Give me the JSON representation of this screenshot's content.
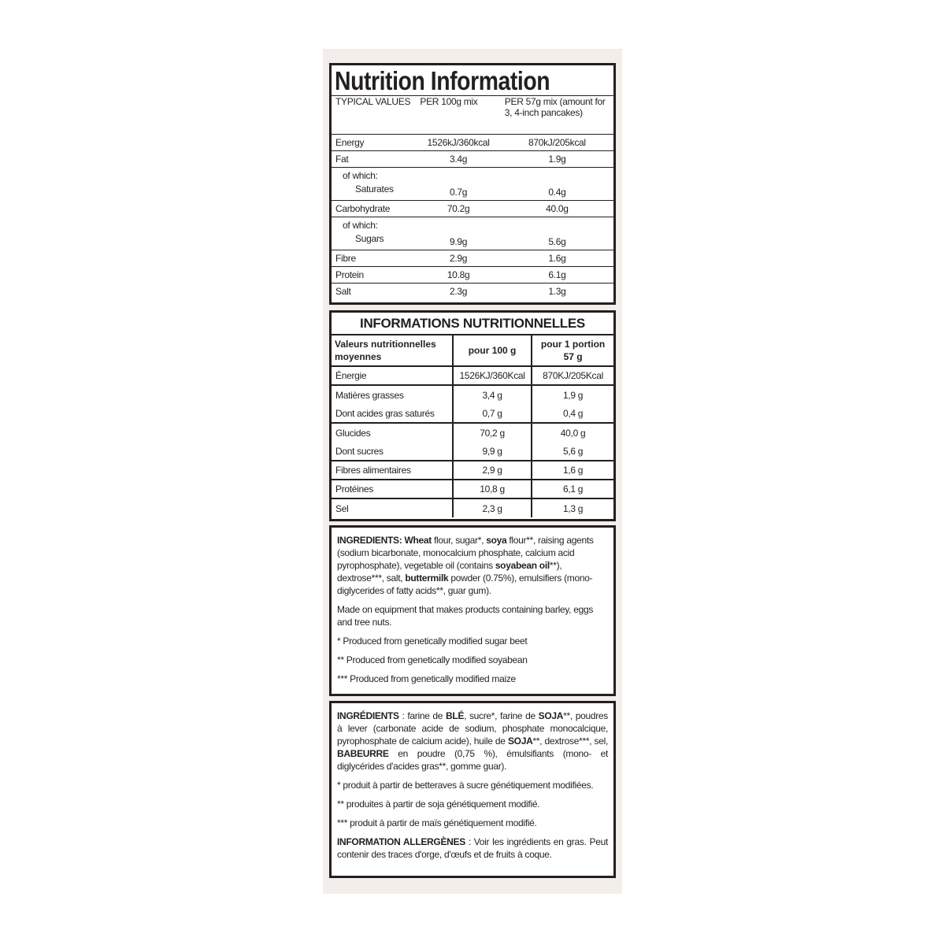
{
  "en_table": {
    "title": "Nutrition Information",
    "header": [
      "TYPICAL VALUES",
      "PER 100g mix",
      "PER 57g mix (amount for 3, 4-inch pancakes)"
    ],
    "rows": [
      {
        "label": "Energy",
        "per100": "1526kJ/360kcal",
        "per57": "870kJ/205kcal"
      },
      {
        "label": "Fat",
        "per100": "3.4g",
        "per57": "1.9g"
      },
      {
        "sub": "of which:",
        "label": "Saturates",
        "per100": "0.7g",
        "per57": "0.4g"
      },
      {
        "label": "Carbohydrate",
        "per100": "70.2g",
        "per57": "40.0g"
      },
      {
        "sub": "of which:",
        "label": "Sugars",
        "per100": "9.9g",
        "per57": "5.6g"
      },
      {
        "label": "Fibre",
        "per100": "2.9g",
        "per57": "1.6g"
      },
      {
        "label": "Protein",
        "per100": "10.8g",
        "per57": "6.1g"
      },
      {
        "label": "Salt",
        "per100": "2.3g",
        "per57": "1.3g"
      }
    ]
  },
  "fr_table": {
    "title": "INFORMATIONS NUTRITIONNELLES",
    "header": [
      "Valeurs nutritionnelles moyennes",
      "pour 100 g",
      "pour 1 portion 57 g"
    ],
    "rows": [
      {
        "label": "Énergie",
        "per100": "1526KJ/360Kcal",
        "per57": "870KJ/205Kcal",
        "sep": true
      },
      {
        "label": "Matières grasses",
        "per100": "3,4 g",
        "per57": "1,9 g",
        "sep": true
      },
      {
        "label": "Dont acides gras saturés",
        "per100": "0,7 g",
        "per57": "0,4 g",
        "sep": false
      },
      {
        "label": "Glucides",
        "per100": "70,2 g",
        "per57": "40,0 g",
        "sep": true
      },
      {
        "label": "Dont sucres",
        "per100": "9,9 g",
        "per57": "5,6 g",
        "sep": false
      },
      {
        "label": "Fibres alimentaires",
        "per100": "2,9 g",
        "per57": "1,6 g",
        "sep": true
      },
      {
        "label": "Protéines",
        "per100": "10,8 g",
        "per57": "6,1 g",
        "sep": true
      },
      {
        "label": "Sel",
        "per100": "2,3 g",
        "per57": "1,3 g",
        "sep": true
      }
    ]
  },
  "en_ingredients": {
    "paragraphs": [
      [
        {
          "t": "INGREDIENTS: Wheat ",
          "b": true
        },
        {
          "t": " flour, sugar*, "
        },
        {
          "t": "soya",
          "b": true
        },
        {
          "t": " flour**, raising agents (sodium bicarbonate, monocalcium phosphate, calcium acid pyrophosphate), vegetable oil (contains "
        },
        {
          "t": "soyabean oil",
          "b": true
        },
        {
          "t": "**), dextrose***, salt, "
        },
        {
          "t": "buttermilk",
          "b": true
        },
        {
          "t": " powder (0.75%), emulsifiers (mono-diglycerides of fatty acids**, guar gum)."
        }
      ],
      [
        {
          "t": "Made on equipment that makes products containing barley, eggs and tree nuts."
        }
      ],
      [
        {
          "t": "* Produced from genetically modified sugar beet"
        }
      ],
      [
        {
          "t": "** Produced from genetically modified soyabean"
        }
      ],
      [
        {
          "t": "*** Produced from genetically modified maize"
        }
      ]
    ]
  },
  "fr_ingredients": {
    "paragraphs": [
      [
        {
          "t": "INGRÉDIENTS",
          "b": true
        },
        {
          "t": " : farine de "
        },
        {
          "t": "BLÉ",
          "b": true
        },
        {
          "t": ", sucre*, farine de "
        },
        {
          "t": "SOJA",
          "b": true
        },
        {
          "t": "**, poudres à lever (carbonate acide de sodium, phosphate monocalcique, pyrophosphate de calcium acide), huile de "
        },
        {
          "t": "SOJA",
          "b": true
        },
        {
          "t": "**, dextrose***, sel, "
        },
        {
          "t": "BABEURRE",
          "b": true
        },
        {
          "t": " en poudre (0,75 %), émulsifiants (mono- et diglycérides d'acides gras**, gomme guar)."
        }
      ],
      [
        {
          "t": "* produit à partir de betteraves à sucre génétiquement modifiées."
        }
      ],
      [
        {
          "t": "** produites à partir de soja génétiquement modifié."
        }
      ],
      [
        {
          "t": "*** produit à partir de maïs génétiquement modifié."
        }
      ],
      [
        {
          "t": "INFORMATION ALLERGÈNES",
          "b": true
        },
        {
          "t": " : Voir les ingrédients en gras. Peut contenir des traces d'orge, d'œufs et de fruits à coque."
        }
      ]
    ]
  }
}
